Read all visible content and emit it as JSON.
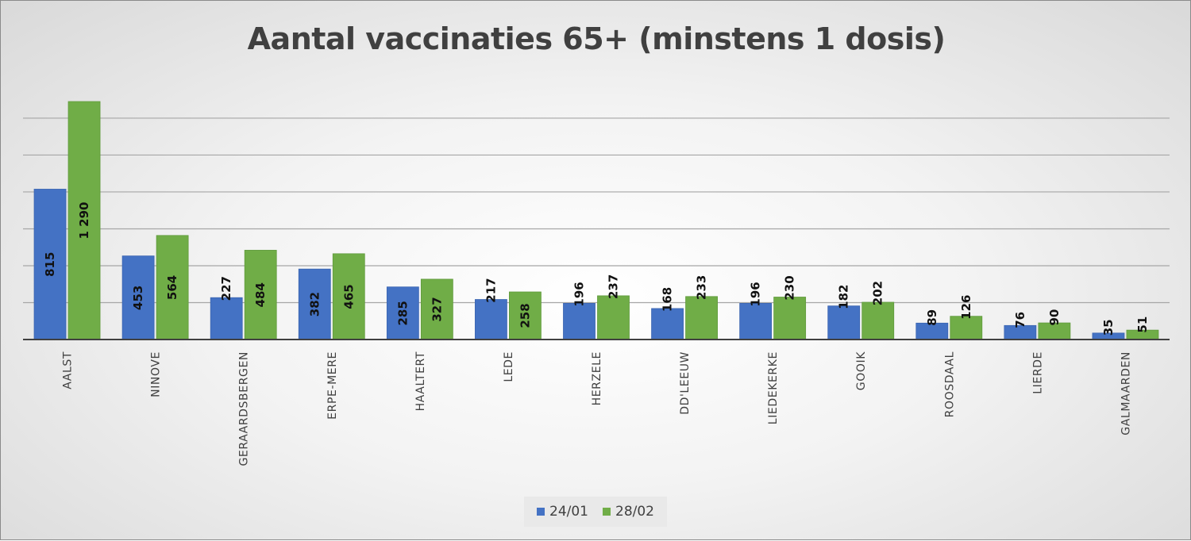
{
  "chart_data": {
    "type": "bar",
    "title": "Aantal vaccinaties 65+ (minstens 1 dosis)",
    "categories": [
      "AALST",
      "NINOVE",
      "GERAARDSBERGEN",
      "ERPE-MERE",
      "HAALTERT",
      "LEDE",
      "HERZELE",
      "DD'LEEUW",
      "LIEDEKERKE",
      "GOOIK",
      "ROOSDAAL",
      "LIERDE",
      "GALMAARDEN"
    ],
    "series": [
      {
        "name": "24/01",
        "values": [
          815,
          453,
          227,
          382,
          285,
          217,
          196,
          168,
          196,
          182,
          89,
          76,
          35
        ],
        "labels": [
          "815",
          "453",
          "227",
          "382",
          "285",
          "217",
          "196",
          "168",
          "196",
          "182",
          "89",
          "76",
          "35"
        ]
      },
      {
        "name": "28/02",
        "values": [
          1290,
          564,
          484,
          465,
          327,
          258,
          237,
          233,
          230,
          202,
          126,
          90,
          51
        ],
        "labels": [
          "1 290",
          "564",
          "484",
          "465",
          "327",
          "258",
          "237",
          "233",
          "230",
          "202",
          "126",
          "90",
          "51"
        ]
      }
    ],
    "xlabel": "",
    "ylabel": "",
    "ylim": [
      0,
      1300
    ],
    "grid": true,
    "legend_position": "bottom",
    "colors": {
      "24/01": "#4472c4",
      "28/02": "#70ad47"
    }
  }
}
